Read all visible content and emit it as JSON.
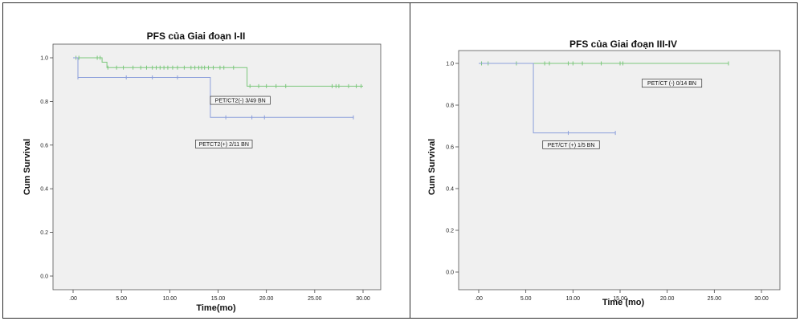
{
  "chart_data": [
    {
      "type": "line",
      "title": "PFS của Giai đoạn I-II",
      "xlabel": "Time(mo)",
      "ylabel": "Cum Survival",
      "xlim": [
        0,
        30
      ],
      "ylim": [
        0,
        1
      ],
      "x_ticks": [
        ".00",
        "5.00",
        "10.00",
        "15.00",
        "20.00",
        "25.00",
        "30.00"
      ],
      "y_ticks": [
        "0.0",
        "0.2",
        "0.4",
        "0.6",
        "0.8",
        "1.0"
      ],
      "grid": false,
      "series": [
        {
          "color": "#7bc77b",
          "steps": [
            [
              0,
              1.0
            ],
            [
              3.0,
              0.98
            ],
            [
              3.5,
              0.955
            ],
            [
              18.0,
              0.87
            ],
            [
              30.0,
              0.87
            ]
          ],
          "censored": [
            0.3,
            0.6,
            2.5,
            2.8,
            3.6,
            4.5,
            5.2,
            6.2,
            7.0,
            7.6,
            8.2,
            8.6,
            9.0,
            9.4,
            9.8,
            10.3,
            10.8,
            11.5,
            12.2,
            12.6,
            13.0,
            13.3,
            13.6,
            14.0,
            14.5,
            15.2,
            15.6,
            16.6,
            18.3,
            19.2,
            20.0,
            21.0,
            22.0,
            26.8,
            27.2,
            27.5,
            28.5,
            29.3,
            29.8
          ]
        },
        {
          "color": "#8c9fdb",
          "steps": [
            [
              0,
              1.0
            ],
            [
              0.5,
              0.91
            ],
            [
              14.2,
              0.727
            ],
            [
              29.0,
              0.727
            ]
          ],
          "censored": [
            0.5,
            5.5,
            8.2,
            10.8,
            15.8,
            18.5,
            19.8,
            29.0
          ]
        }
      ],
      "annotations": [
        {
          "text": "PET/CT2(-) 3/49 BN",
          "x": 17.3,
          "y": 0.805
        },
        {
          "text": "PETCT2(+) 2/11 BN",
          "x": 15.6,
          "y": 0.605
        }
      ]
    },
    {
      "type": "line",
      "title": "PFS của Giai đoạn III-IV",
      "xlabel": "Time (mo)",
      "ylabel": "Cum Survival",
      "xlim": [
        0,
        30
      ],
      "ylim": [
        0,
        1
      ],
      "x_ticks": [
        ".00",
        "5.00",
        "10.00",
        "15.00",
        "20.00",
        "25.00",
        "30.00"
      ],
      "y_ticks": [
        "0.0",
        "0.2",
        "0.4",
        "0.6",
        "0.8",
        "1.0"
      ],
      "grid": false,
      "series": [
        {
          "color": "#7bc77b",
          "steps": [
            [
              0,
              1.0
            ],
            [
              26.5,
              1.0
            ]
          ],
          "censored": [
            0.3,
            1.0,
            4.0,
            7.0,
            7.5,
            9.5,
            10.0,
            11.0,
            13.0,
            15.0,
            15.3,
            26.5
          ]
        },
        {
          "color": "#8c9fdb",
          "steps": [
            [
              0,
              1.0
            ],
            [
              5.8,
              0.667
            ],
            [
              14.5,
              0.667
            ]
          ],
          "censored": [
            9.5,
            14.5
          ]
        }
      ],
      "annotations": [
        {
          "text": "PET/CT (-) 0/14 BN",
          "x": 20.5,
          "y": 0.905
        },
        {
          "text": "PET/CT (+) 1/5 BN",
          "x": 9.8,
          "y": 0.61
        }
      ]
    }
  ]
}
